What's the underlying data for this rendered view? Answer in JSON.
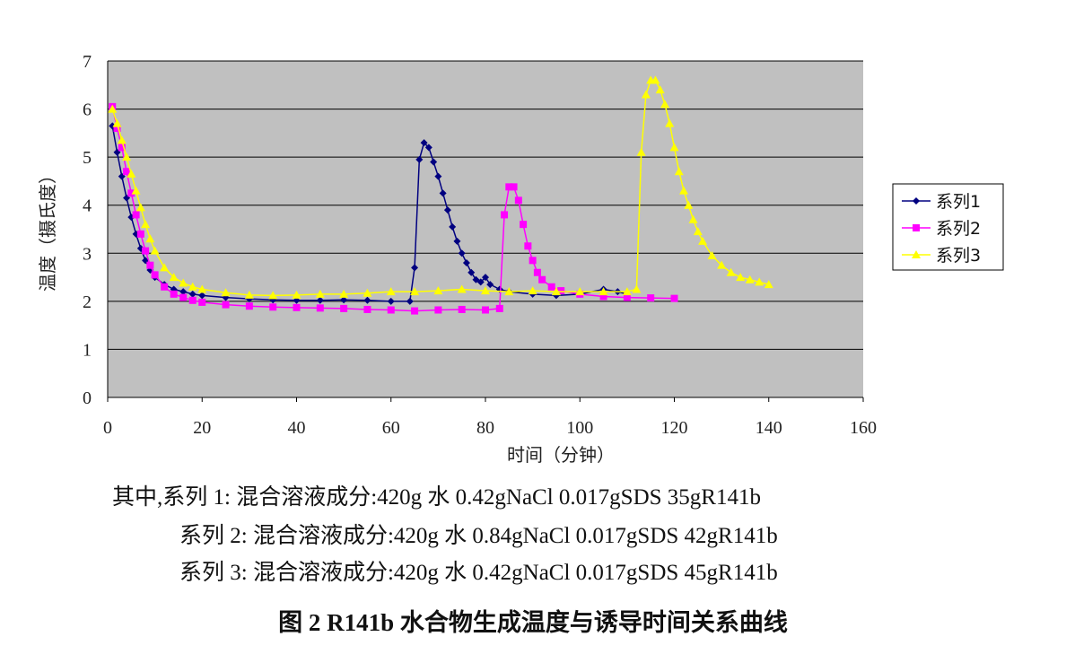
{
  "chart_data": {
    "type": "line",
    "title": "图 2  R141b 水合物生成温度与诱导时间关系曲线",
    "notes": [
      "其中,系列 1:  混合溶液成分:420g 水  0.42gNaCl  0.017gSDS  35gR141b",
      "系列 2:  混合溶液成分:420g 水  0.84gNaCl  0.017gSDS  42gR141b",
      "系列 3:  混合溶液成分:420g 水  0.42gNaCl  0.017gSDS  45gR141b"
    ],
    "xlabel": "时间（分钟）",
    "ylabel": "温度（摄氏度）",
    "xlim": [
      0,
      160
    ],
    "xticks": [
      0,
      20,
      40,
      60,
      80,
      100,
      120,
      140,
      160
    ],
    "ylim": [
      0,
      7
    ],
    "yticks": [
      0,
      1,
      2,
      3,
      4,
      5,
      6,
      7
    ],
    "grid": true,
    "legend": "right",
    "series": [
      {
        "name": "系列1",
        "color": "#000080",
        "marker": "diamond",
        "x": [
          1,
          2,
          3,
          4,
          5,
          6,
          7,
          8,
          9,
          10,
          12,
          14,
          16,
          18,
          20,
          25,
          30,
          35,
          40,
          45,
          50,
          55,
          60,
          64,
          65,
          66,
          67,
          68,
          69,
          70,
          71,
          72,
          73,
          74,
          75,
          76,
          77,
          78,
          79,
          80,
          81,
          83,
          85,
          90,
          95,
          100,
          105,
          108,
          110
        ],
        "values": [
          5.65,
          5.1,
          4.6,
          4.15,
          3.75,
          3.4,
          3.1,
          2.85,
          2.65,
          2.5,
          2.35,
          2.25,
          2.2,
          2.15,
          2.12,
          2.08,
          2.05,
          2.03,
          2.02,
          2.02,
          2.03,
          2.02,
          2.0,
          2.0,
          2.7,
          4.95,
          5.3,
          5.2,
          4.9,
          4.6,
          4.25,
          3.9,
          3.55,
          3.25,
          3.0,
          2.8,
          2.6,
          2.45,
          2.4,
          2.5,
          2.35,
          2.25,
          2.2,
          2.15,
          2.12,
          2.15,
          2.25,
          2.2,
          2.15
        ]
      },
      {
        "name": "系列2",
        "color": "#ff00ff",
        "marker": "square",
        "x": [
          1,
          2,
          3,
          4,
          5,
          6,
          7,
          8,
          9,
          10,
          12,
          14,
          16,
          18,
          20,
          25,
          30,
          35,
          40,
          45,
          50,
          55,
          60,
          65,
          70,
          75,
          80,
          83,
          84,
          85,
          86,
          87,
          88,
          89,
          90,
          91,
          92,
          94,
          96,
          100,
          105,
          110,
          115,
          120
        ],
        "values": [
          6.05,
          5.6,
          5.2,
          4.7,
          4.25,
          3.8,
          3.4,
          3.05,
          2.75,
          2.55,
          2.3,
          2.15,
          2.08,
          2.02,
          1.98,
          1.93,
          1.9,
          1.88,
          1.87,
          1.86,
          1.85,
          1.83,
          1.82,
          1.8,
          1.82,
          1.83,
          1.82,
          1.85,
          3.8,
          4.38,
          4.38,
          4.1,
          3.6,
          3.15,
          2.85,
          2.6,
          2.45,
          2.3,
          2.22,
          2.15,
          2.1,
          2.08,
          2.07,
          2.06
        ]
      },
      {
        "name": "系列3",
        "color": "#ffff00",
        "marker": "triangle",
        "x": [
          1,
          2,
          3,
          4,
          5,
          6,
          7,
          8,
          9,
          10,
          12,
          14,
          16,
          18,
          20,
          25,
          30,
          35,
          40,
          45,
          50,
          55,
          60,
          65,
          70,
          75,
          80,
          85,
          90,
          95,
          100,
          105,
          110,
          112,
          113,
          114,
          115,
          116,
          117,
          118,
          119,
          120,
          121,
          122,
          123,
          124,
          125,
          126,
          128,
          130,
          132,
          134,
          136,
          138,
          140
        ],
        "values": [
          6.0,
          5.7,
          5.35,
          5.0,
          4.65,
          4.3,
          3.95,
          3.6,
          3.3,
          3.05,
          2.7,
          2.5,
          2.38,
          2.3,
          2.25,
          2.18,
          2.13,
          2.12,
          2.13,
          2.15,
          2.15,
          2.17,
          2.2,
          2.2,
          2.22,
          2.25,
          2.22,
          2.2,
          2.22,
          2.2,
          2.2,
          2.2,
          2.2,
          2.25,
          5.1,
          6.3,
          6.6,
          6.6,
          6.4,
          6.1,
          5.7,
          5.2,
          4.7,
          4.3,
          4.0,
          3.7,
          3.45,
          3.25,
          2.95,
          2.75,
          2.6,
          2.5,
          2.45,
          2.4,
          2.35
        ]
      }
    ]
  }
}
